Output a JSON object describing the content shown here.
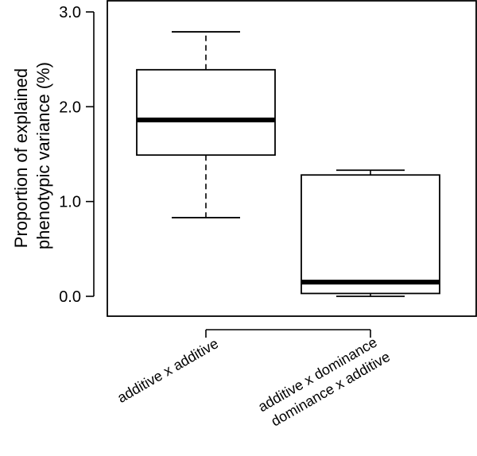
{
  "chart_data": {
    "type": "box",
    "ylabel_lines": [
      "Proportion of explained",
      "phenotypic variance (%)"
    ],
    "ylim": [
      0.0,
      3.0
    ],
    "yticks": [
      "0.0",
      "1.0",
      "2.0",
      "3.0"
    ],
    "grid": false,
    "categories": [
      {
        "label_lines": [
          "additive x additive"
        ]
      },
      {
        "label_lines": [
          "additive x dominance",
          "dominance x additive"
        ]
      }
    ],
    "boxes": [
      {
        "min": 0.83,
        "q1": 1.49,
        "median": 1.86,
        "q3": 2.39,
        "max": 2.79
      },
      {
        "min": 0.0,
        "q1": 0.03,
        "median": 0.15,
        "q3": 1.28,
        "max": 1.33
      }
    ]
  }
}
